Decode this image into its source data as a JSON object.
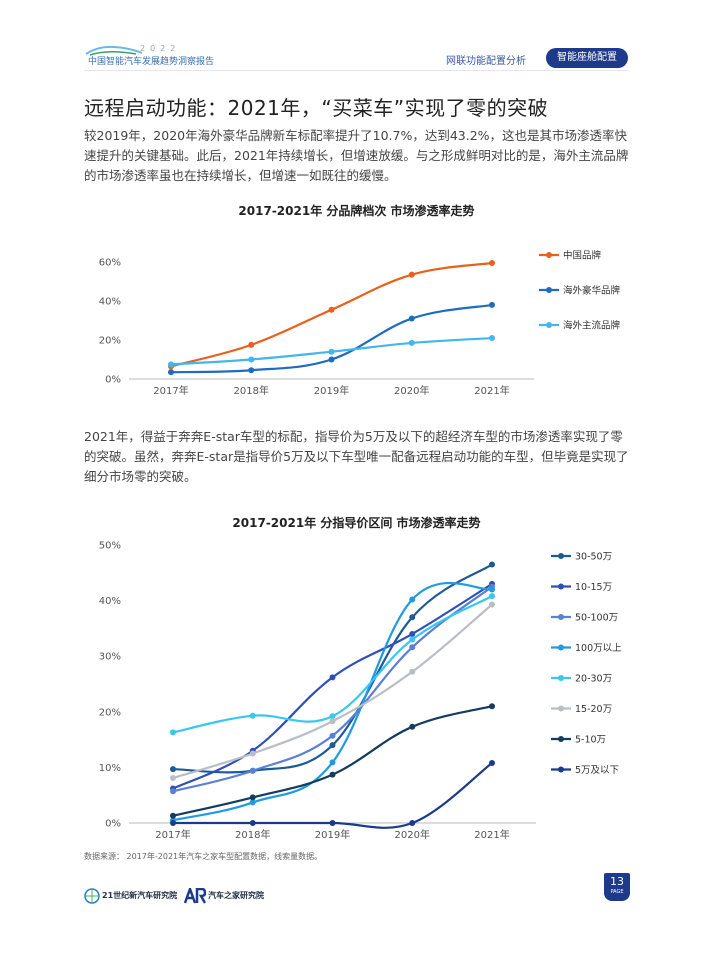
{
  "header": {
    "logo_text": "中国智能汽车发展趋势洞察报告",
    "logo_year": "2022",
    "section": "网联功能配置分析",
    "active_tab": "智能座舱配置"
  },
  "title": "远程启动功能：2021年，“买菜车”实现了零的突破",
  "paragraph1": "较2019年，2020年海外豪华品牌新车标配率提升了10.7%，达到43.2%，这也是其市场渗透率快速提升的关键基础。此后，2021年持续增长，但增速放缓。与之形成鲜明对比的是，海外主流品牌的市场渗透率虽也在持续增长，但增速一如既往的缓慢。",
  "paragraph2": "2021年，得益于奔奔E-star车型的标配，指导价为5万及以下的超经济车型的市场渗透率实现了零的突破。虽然，奔奔E-star是指导价5万及以下车型唯一配备远程启动功能的车型，但毕竟是实现了细分市场零的突破。",
  "source": "数据来源： 2017年-2021年汽车之家车型配置数据，线索量数据。",
  "footer": {
    "logo1": "21世纪新汽车研究院",
    "logo2": "汽车之家研究院",
    "page_number": "13",
    "page_label": "PAGE"
  },
  "chart_data": [
    {
      "type": "line",
      "title": "2017-2021年 分品牌档次 市场渗透率走势",
      "categories": [
        "2017年",
        "2018年",
        "2019年",
        "2020年",
        "2021年"
      ],
      "yticks": [
        "0%",
        "20%",
        "40%",
        "60%"
      ],
      "ylim": [
        0,
        60
      ],
      "legend_position": "right",
      "series": [
        {
          "name": "中国品牌",
          "color": "#e8601c",
          "values": [
            6.5,
            17.5,
            35.5,
            53.5,
            59.5
          ]
        },
        {
          "name": "海外豪华品牌",
          "color": "#1f6bbf",
          "values": [
            3.5,
            4.5,
            10,
            31,
            38
          ]
        },
        {
          "name": "海外主流品牌",
          "color": "#43b6ee",
          "values": [
            7.5,
            10,
            14,
            18.5,
            21
          ]
        }
      ]
    },
    {
      "type": "line",
      "title": "2017-2021年 分指导价区间 市场渗透率走势",
      "categories": [
        "2017年",
        "2018年",
        "2019年",
        "2020年",
        "2021年"
      ],
      "yticks": [
        "0%",
        "10%",
        "20%",
        "30%",
        "40%",
        "50%"
      ],
      "ylim": [
        0,
        50
      ],
      "legend_position": "right",
      "series": [
        {
          "name": "30-50万",
          "color": "#1e5a96",
          "values": [
            9.7,
            9.4,
            14,
            37,
            46.5
          ]
        },
        {
          "name": "10-15万",
          "color": "#2f4fb8",
          "values": [
            6.2,
            13,
            26.2,
            34,
            43
          ]
        },
        {
          "name": "50-100万",
          "color": "#5a7fd6",
          "values": [
            5.7,
            9.4,
            15.7,
            31.6,
            42.5
          ]
        },
        {
          "name": "100万以上",
          "color": "#1f9be0",
          "values": [
            0.5,
            3.7,
            10.9,
            40.2,
            42
          ]
        },
        {
          "name": "20-30万",
          "color": "#39c6f0",
          "values": [
            16.3,
            19.3,
            19.2,
            33,
            40.8
          ]
        },
        {
          "name": "15-20万",
          "color": "#b9bec6",
          "values": [
            8.1,
            12.5,
            18.3,
            27.2,
            39.3
          ]
        },
        {
          "name": "5-10万",
          "color": "#143c5e",
          "values": [
            1.3,
            4.6,
            8.7,
            17.3,
            21
          ]
        },
        {
          "name": "5万及以下",
          "color": "#1a3a8a",
          "values": [
            0,
            0,
            0,
            0,
            10.8
          ]
        }
      ]
    }
  ]
}
